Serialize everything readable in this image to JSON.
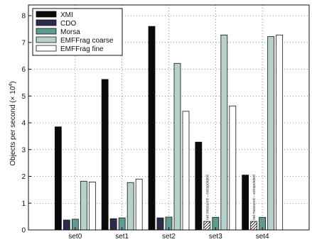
{
  "chart_data": {
    "type": "bar",
    "categories": [
      "set0",
      "set1",
      "set2",
      "set3",
      "set4"
    ],
    "ylabel": "Objects per second (× 10⁴)",
    "ylabel_base": "Objects per second (× 10",
    "ylabel_exp": "4",
    "ylabel_end": ")",
    "ylim": [
      0,
      8.4
    ],
    "yticks": [
      "0",
      "1",
      "2",
      "3",
      "4",
      "5",
      "6",
      "7",
      "8"
    ],
    "grid": true,
    "legend_position": "top-left",
    "series": [
      {
        "name": "XMI",
        "color": "#0a0a0a",
        "values": [
          3.85,
          5.62,
          7.6,
          3.28,
          2.05
        ]
      },
      {
        "name": "CDO",
        "color": "#2b2b4e",
        "values": [
          0.37,
          0.42,
          0.45,
          null,
          null
        ]
      },
      {
        "name": "Morsa",
        "color": "#5f9a8e",
        "values": [
          0.4,
          0.45,
          0.48,
          0.47,
          0.47
        ]
      },
      {
        "name": "EMFFrag coarse",
        "color": "#b6d0cb",
        "values": [
          1.82,
          1.77,
          6.22,
          7.28,
          7.22
        ]
      },
      {
        "name": "EMFFrag fine",
        "color": "#ffffff",
        "values": [
          1.79,
          1.9,
          4.43,
          4.63,
          7.28
        ]
      }
    ],
    "annotations": [
      {
        "category": "set3",
        "series": "CDO",
        "text": "not measured – extrapolated"
      },
      {
        "category": "set4",
        "series": "CDO",
        "text": "not measured – extrapolated"
      }
    ]
  }
}
